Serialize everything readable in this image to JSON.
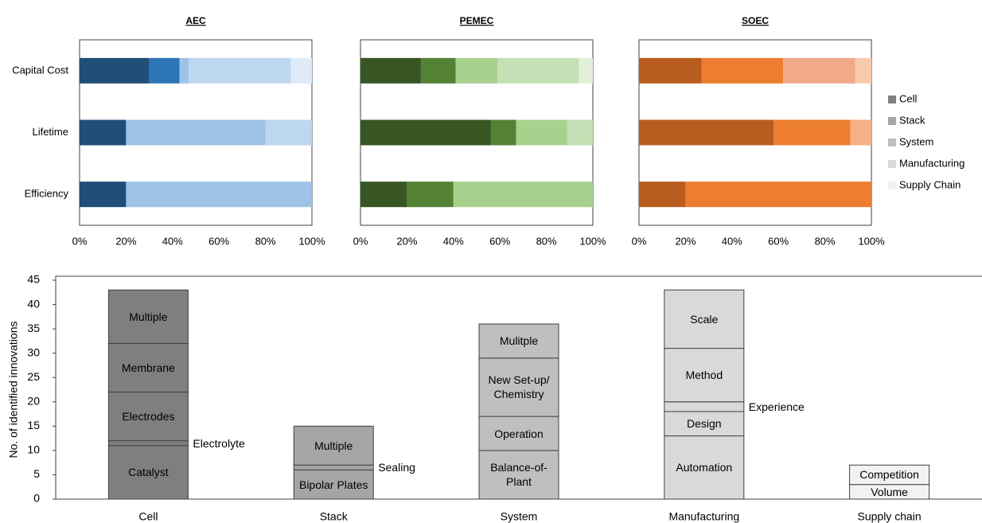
{
  "chart_data": [
    {
      "type": "stacked_barh",
      "title": "AEC",
      "categories": [
        "Capital Cost",
        "Lifetime",
        "Efficiency"
      ],
      "xlim": [
        0,
        100
      ],
      "xticks": [
        {
          "value": 0,
          "label": "0%"
        },
        {
          "value": 20,
          "label": "20%"
        },
        {
          "value": 40,
          "label": "40%"
        },
        {
          "value": 60,
          "label": "60%"
        },
        {
          "value": 80,
          "label": "80%"
        },
        {
          "value": 100,
          "label": "100%"
        }
      ],
      "series": [
        {
          "name": "Cell",
          "color": "#1f4e79",
          "values": [
            30,
            20,
            20
          ]
        },
        {
          "name": "Stack",
          "color": "#2e75b6",
          "values": [
            13,
            0,
            0
          ]
        },
        {
          "name": "System",
          "color": "#9dc3e6",
          "values": [
            4,
            60,
            80
          ]
        },
        {
          "name": "Manufacturing",
          "color": "#bdd7ee",
          "values": [
            44,
            20,
            0
          ]
        },
        {
          "name": "Supply Chain",
          "color": "#deebf7",
          "values": [
            9,
            0,
            0
          ]
        }
      ]
    },
    {
      "type": "stacked_barh",
      "title": "PEMEC",
      "categories": [
        "Capital Cost",
        "Lifetime",
        "Efficiency"
      ],
      "xlim": [
        0,
        100
      ],
      "xticks": [
        {
          "value": 0,
          "label": "0%"
        },
        {
          "value": 20,
          "label": "20%"
        },
        {
          "value": 40,
          "label": "40%"
        },
        {
          "value": 60,
          "label": "60%"
        },
        {
          "value": 80,
          "label": "80%"
        },
        {
          "value": 100,
          "label": "100%"
        }
      ],
      "series": [
        {
          "name": "Cell",
          "color": "#375623",
          "values": [
            26,
            56,
            20
          ]
        },
        {
          "name": "Stack",
          "color": "#548235",
          "values": [
            15,
            11,
            20
          ]
        },
        {
          "name": "System",
          "color": "#a9d18e",
          "values": [
            18,
            22,
            60
          ]
        },
        {
          "name": "Manufacturing",
          "color": "#c5e0b4",
          "values": [
            35,
            11,
            0
          ]
        },
        {
          "name": "Supply Chain",
          "color": "#e2f0d9",
          "values": [
            6,
            0,
            0
          ]
        }
      ]
    },
    {
      "type": "stacked_barh",
      "title": "SOEC",
      "categories": [
        "Capital Cost",
        "Lifetime",
        "Efficiency"
      ],
      "xlim": [
        0,
        100
      ],
      "xticks": [
        {
          "value": 0,
          "label": "0%"
        },
        {
          "value": 20,
          "label": "20%"
        },
        {
          "value": 40,
          "label": "40%"
        },
        {
          "value": 60,
          "label": "60%"
        },
        {
          "value": 80,
          "label": "80%"
        },
        {
          "value": 100,
          "label": "100%"
        }
      ],
      "series": [
        {
          "name": "Cell",
          "color": "#b85c20",
          "values": [
            27,
            58,
            20
          ]
        },
        {
          "name": "Stack",
          "color": "#ed7d31",
          "values": [
            35,
            33,
            80
          ]
        },
        {
          "name": "System",
          "color": "#f4b183",
          "values": [
            0,
            9,
            0
          ]
        },
        {
          "name": "Manufacturing",
          "color": "#f1a98a",
          "values": [
            31,
            0,
            0
          ]
        },
        {
          "name": "Supply Chain",
          "color": "#f8cbad",
          "values": [
            7,
            0,
            0
          ]
        }
      ]
    },
    {
      "type": "stacked_bar",
      "y_label": "No. of identified innovations",
      "ylim": [
        0,
        45
      ],
      "yticks": [
        0,
        5,
        10,
        15,
        20,
        25,
        30,
        35,
        40,
        45
      ],
      "categories": [
        "Cell",
        "Stack",
        "System",
        "Manufacturing",
        "Supply chain"
      ],
      "colors": [
        "#7f7f7f",
        "#a5a5a5",
        "#bfbfbf",
        "#d9d9d9",
        "#f2f2f2"
      ],
      "stacks": [
        [
          {
            "label": "Catalyst",
            "value": 11
          },
          {
            "label": "Electrolyte",
            "value": 1
          },
          {
            "label": "Electrodes",
            "value": 10
          },
          {
            "label": "Membrane",
            "value": 10
          },
          {
            "label": "Multiple",
            "value": 11
          }
        ],
        [
          {
            "label": "Bipolar Plates",
            "value": 6
          },
          {
            "label": "Sealing",
            "value": 1
          },
          {
            "label": "Multiple",
            "value": 8
          }
        ],
        [
          {
            "label": "Balance-of-Plant",
            "value": 10
          },
          {
            "label": "Operation",
            "value": 7
          },
          {
            "label": "New Set-up/ Chemistry",
            "value": 12
          },
          {
            "label": "Mulitple",
            "value": 7
          }
        ],
        [
          {
            "label": "Automation",
            "value": 13
          },
          {
            "label": "Design",
            "value": 5
          },
          {
            "label": "Experience",
            "value": 2
          },
          {
            "label": "Method",
            "value": 11
          },
          {
            "label": "Scale",
            "value": 12
          }
        ],
        [
          {
            "label": "Volume",
            "value": 3
          },
          {
            "label": "Competition",
            "value": 4
          }
        ]
      ]
    }
  ],
  "legend": {
    "colors": [
      "#7f7f7f",
      "#a5a5a5",
      "#bfbfbf",
      "#d9d9d9",
      "#f2f2f2"
    ]
  }
}
